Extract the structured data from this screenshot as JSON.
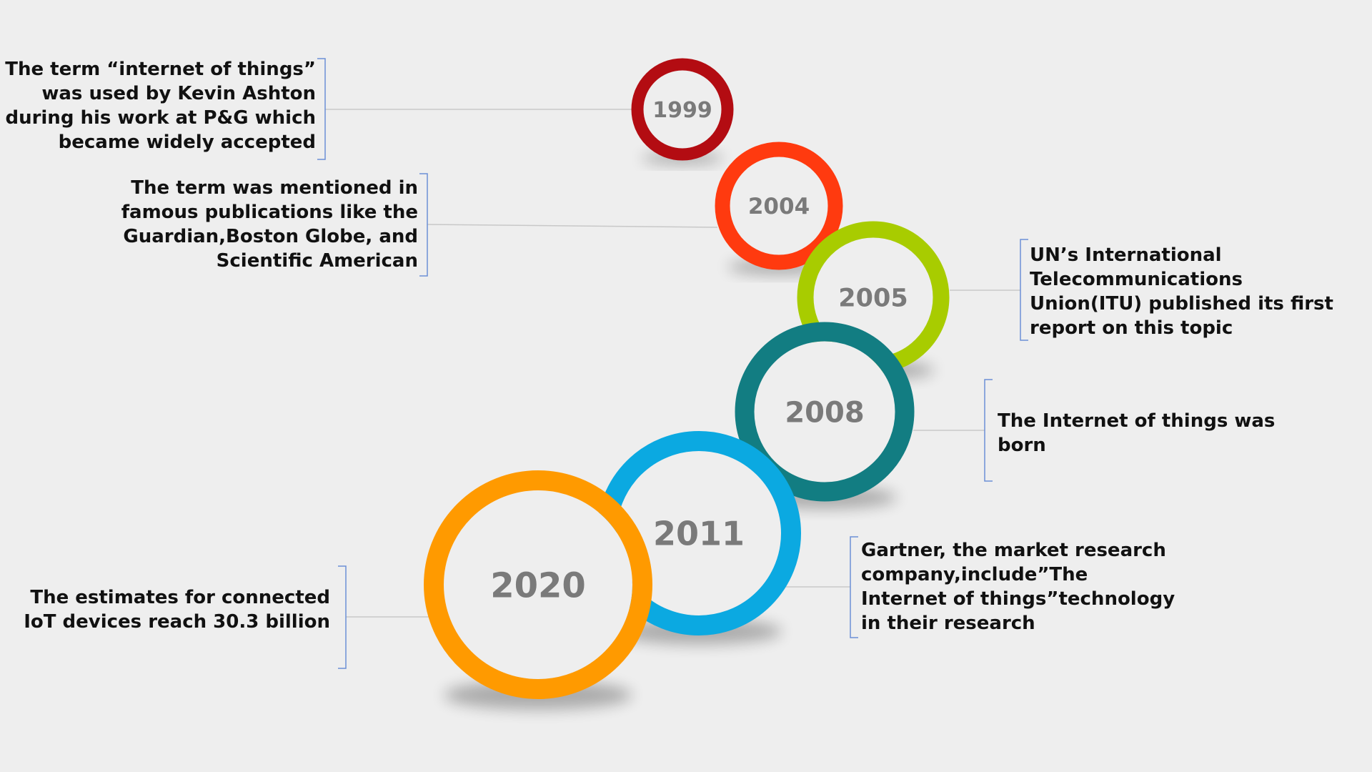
{
  "colors": {
    "background": "#eeeeee",
    "connector": "#c8c8c8",
    "bracket": "#6b8fd6",
    "year_text": "#7a7a7a",
    "description_text": "#111111"
  },
  "milestones": [
    {
      "id": "1999",
      "year": "1999",
      "color": "#b30c12",
      "description": "The term “internet of things”\nwas used by Kevin Ashton\nduring his work at P&G which\nbecame widely accepted"
    },
    {
      "id": "2004",
      "year": "2004",
      "color": "#ff3a0f",
      "description": "The term was mentioned in\nfamous publications like the\nGuardian,Boston Globe, and\nScientific American"
    },
    {
      "id": "2005",
      "year": "2005",
      "color": "#a8cc00",
      "description": "UN’s International\nTelecommunications\nUnion(ITU) published its first\nreport on this topic"
    },
    {
      "id": "2008",
      "year": "2008",
      "color": "#127d82",
      "description": "The Internet of things was\nborn"
    },
    {
      "id": "2011",
      "year": "2011",
      "color": "#0ba9e1",
      "description": "Gartner, the market research\ncompany,include”The\nInternet of things”technology\nin their research"
    },
    {
      "id": "2020",
      "year": "2020",
      "color": "#ff9a00",
      "description": "The estimates for connected\nIoT devices reach 30.3 billion"
    }
  ]
}
